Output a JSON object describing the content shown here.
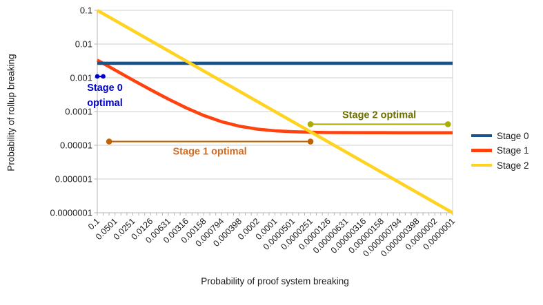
{
  "chart_data": {
    "type": "line",
    "title": "",
    "xlabel": "Probability of proof system breaking",
    "ylabel": "Probability of rollup breaking",
    "x_scale": "log",
    "y_scale": "log",
    "x_range": [
      0.1,
      1e-07
    ],
    "y_range": [
      0.1,
      1e-07
    ],
    "grid": "horizontal",
    "legend_position": "right",
    "x_tick_labels": [
      "0.1",
      "0.0501",
      "0.0251",
      "0.0126",
      "0.00631",
      "0.00316",
      "0.00158",
      "0.000794",
      "0.000398",
      "0.0002",
      "0.0001",
      "0.0000501",
      "0.0000251",
      "0.0000126",
      "0.00000631",
      "0.00000316",
      "0.00000158",
      "0.000000794",
      "0.000000398",
      "0.0000002",
      "0.0000001"
    ],
    "y_tick_labels": [
      "0.1",
      "0.01",
      "0.001",
      "0.0001",
      "0.00001",
      "0.000001",
      "0.0000001"
    ],
    "series": [
      {
        "name": "Stage 0",
        "color": "#17548e",
        "z": 1,
        "points": [
          [
            0.1,
            0.0027
          ],
          [
            1e-07,
            0.0027
          ]
        ]
      },
      {
        "name": "Stage 1",
        "color": "#ff420e",
        "z": 0,
        "points": [
          [
            0.1,
            0.00335
          ],
          [
            0.0501,
            0.00169
          ],
          [
            0.0251,
            0.000859
          ],
          [
            0.0126,
            0.000443
          ],
          [
            0.00631,
            0.000234
          ],
          [
            0.00316,
            0.000129
          ],
          [
            0.00158,
            7.61e-05
          ],
          [
            0.000794,
            4.99e-05
          ],
          [
            0.000398,
            3.68e-05
          ],
          [
            0.0002,
            3.02e-05
          ],
          [
            0.0001,
            2.68e-05
          ],
          [
            5.01e-05,
            2.52e-05
          ],
          [
            2.51e-05,
            2.43e-05
          ],
          [
            1.26e-05,
            2.39e-05
          ],
          [
            6.31e-06,
            2.37e-05
          ],
          [
            3.16e-06,
            2.36e-05
          ],
          [
            1.58e-06,
            2.36e-05
          ],
          [
            7.94e-07,
            2.35e-05
          ],
          [
            3.98e-07,
            2.35e-05
          ],
          [
            2e-07,
            2.35e-05
          ],
          [
            1e-07,
            2.35e-05
          ]
        ]
      },
      {
        "name": "Stage 2",
        "color": "#ffd320",
        "z": 2,
        "points": [
          [
            0.1,
            0.1
          ],
          [
            1e-07,
            1e-07
          ]
        ]
      }
    ],
    "annotations": [
      {
        "name": "stage-0-optimal",
        "text": "Stage 0\noptimal",
        "x_from": 0.1,
        "x_to": 0.0794,
        "y": 0.0011,
        "color": "#0000cc",
        "text_color": "#0000cc",
        "dot_radius": 3.3,
        "label_pos": "below-start"
      },
      {
        "name": "stage-1-optimal",
        "text": "Stage 1 optimal",
        "x_from": 0.0631,
        "x_to": 2.51e-05,
        "y": 1.29e-05,
        "color": "#c26300",
        "text_color": "#d2691e",
        "dot_radius": 4.3,
        "label_pos": "below-center"
      },
      {
        "name": "stage-2-optimal",
        "text": "Stage 2 optimal",
        "x_from": 2.51e-05,
        "x_to": 1.2e-07,
        "y": 4.2e-05,
        "color": "#a9ad00",
        "text_color": "#6b6e00",
        "dot_radius": 4.3,
        "label_pos": "above-center"
      }
    ]
  }
}
